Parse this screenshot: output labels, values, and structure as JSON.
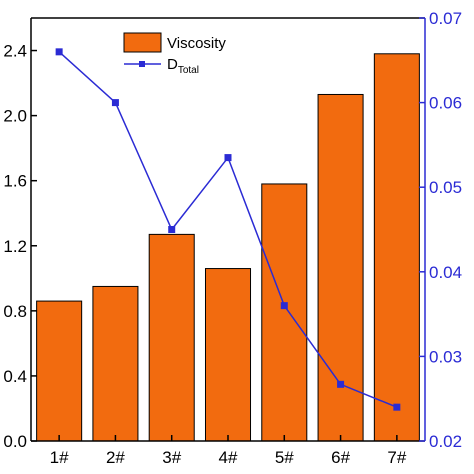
{
  "chart_data": {
    "type": "bar",
    "categories": [
      "1#",
      "2#",
      "3#",
      "4#",
      "5#",
      "6#",
      "7#"
    ],
    "series": [
      {
        "name": "Viscosity",
        "chart": "bar",
        "axis": "left",
        "color": "#f26b0f",
        "values": [
          0.86,
          0.95,
          1.27,
          1.06,
          1.58,
          2.13,
          2.38
        ]
      },
      {
        "name": "D",
        "name_subscript": "Total",
        "chart": "line",
        "axis": "right",
        "color": "#2b2bd4",
        "marker": "square",
        "values": [
          0.066,
          0.06,
          0.045,
          0.0535,
          0.036,
          0.0267,
          0.024
        ]
      }
    ],
    "y_left": {
      "ylim": [
        0,
        2.6
      ],
      "ticks": [
        0.0,
        0.4,
        0.8,
        1.2,
        1.6,
        2.0,
        2.4
      ],
      "tick_labels": [
        "0.0",
        "0.4",
        "0.8",
        "1.2",
        "1.6",
        "2.0",
        "2.4"
      ],
      "color": "#000000"
    },
    "y_right": {
      "ylim": [
        0.02,
        0.07
      ],
      "ticks": [
        0.02,
        0.03,
        0.04,
        0.05,
        0.06,
        0.07
      ],
      "tick_labels": [
        "0.02",
        "0.03",
        "0.04",
        "0.05",
        "0.06",
        "0.07"
      ],
      "color": "#2b2bd4"
    },
    "xlabel": "",
    "ylabel": "",
    "title": "",
    "grid": false,
    "legend_position": "top-center"
  }
}
